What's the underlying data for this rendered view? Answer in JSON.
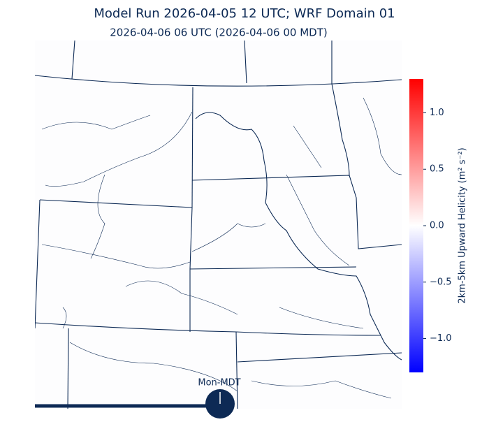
{
  "header": {
    "title": "Model Run 2026-04-05 12 UTC; WRF Domain 01",
    "subtitle": "2026-04-06 06 UTC  (2026-04-06 00 MDT)"
  },
  "colorbar": {
    "label": "2km-5km Upward Helicity (m² s⁻²)",
    "range": [
      -1.3,
      1.3
    ],
    "ticks": [
      {
        "value": 1,
        "label": "1.0"
      },
      {
        "value": 0.5,
        "label": "0.5"
      },
      {
        "value": 0,
        "label": "0.0"
      },
      {
        "value": -0.5,
        "label": "−0.5"
      },
      {
        "value": -1,
        "label": "−1.0"
      }
    ]
  },
  "clock": {
    "label": "Mon-MDT"
  }
}
